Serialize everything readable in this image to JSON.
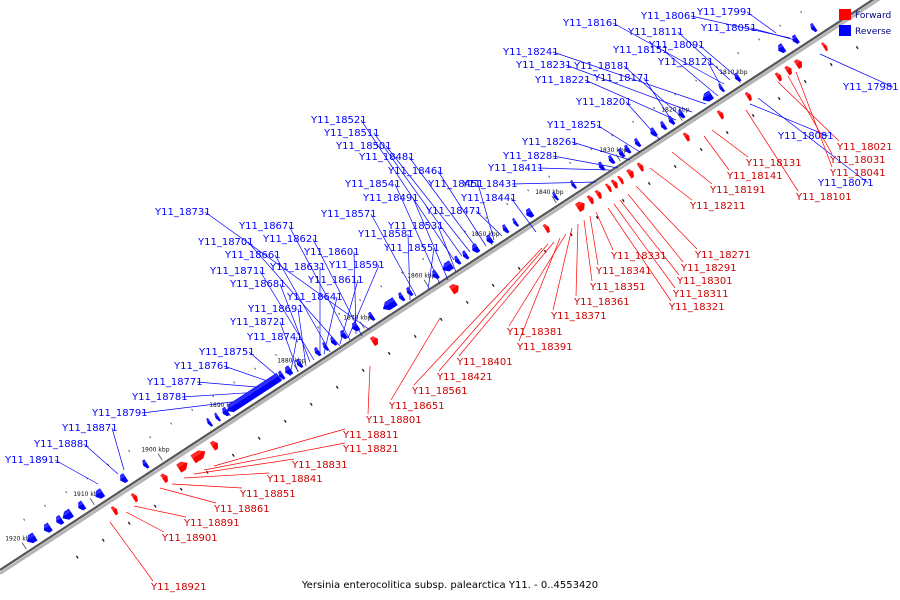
{
  "caption": "Yersinia enterocolitica subsp. palearctica Y11. - 0..4553420",
  "legend": [
    {
      "label": "Forward",
      "color": "#ff0000"
    },
    {
      "label": "Reverse",
      "color": "#0000ff"
    }
  ],
  "colors": {
    "forward": "#ff0000",
    "reverse": "#0000ff",
    "backbone": "#555555",
    "tick": "#000000"
  },
  "ticks": [
    "1810 kbp",
    "1820 kbp",
    "1830 kbp",
    "1840 kbp",
    "1850 kbp",
    "1860 kbp",
    "1870 kbp",
    "1880 kbp",
    "1890 kbp",
    "1900 kbp",
    "1910 kbp",
    "1920 kbp"
  ],
  "reverse_genes": [
    "Y11_17991",
    "Y11_18061",
    "Y11_18051",
    "Y11_18161",
    "Y11_18111",
    "Y11_18091",
    "Y11_18151",
    "Y11_18121",
    "Y11_18241",
    "Y11_18231",
    "Y11_18181",
    "Y11_18221",
    "Y11_18171",
    "Y11_18201",
    "Y11_18251",
    "Y11_18261",
    "Y11_18281",
    "Y11_18411",
    "Y11_18431",
    "Y11_18441",
    "Y11_18521",
    "Y11_18511",
    "Y11_18501",
    "Y11_18481",
    "Y11_18461",
    "Y11_18541",
    "Y11_18451",
    "Y11_18491",
    "Y11_18471",
    "Y11_18571",
    "Y11_18531",
    "Y11_18581",
    "Y11_18551",
    "Y11_18731",
    "Y11_18671",
    "Y11_18701",
    "Y11_18621",
    "Y11_18661",
    "Y11_18601",
    "Y11_18631",
    "Y11_18591",
    "Y11_18711",
    "Y11_18611",
    "Y11_18681",
    "Y11_18641",
    "Y11_18691",
    "Y11_18721",
    "Y11_18741",
    "Y11_18751",
    "Y11_18761",
    "Y11_18771",
    "Y11_18781",
    "Y11_18791",
    "Y11_18871",
    "Y11_18881",
    "Y11_18911",
    "Y11_17981",
    "Y11_18081",
    "Y11_18071"
  ],
  "forward_genes": [
    "Y11_18021",
    "Y11_18031",
    "Y11_18041",
    "Y11_18131",
    "Y11_18141",
    "Y11_18101",
    "Y11_18191",
    "Y11_18211",
    "Y11_18271",
    "Y11_18291",
    "Y11_18301",
    "Y11_18311",
    "Y11_18321",
    "Y11_18331",
    "Y11_18341",
    "Y11_18351",
    "Y11_18361",
    "Y11_18371",
    "Y11_18381",
    "Y11_18391",
    "Y11_18401",
    "Y11_18421",
    "Y11_18561",
    "Y11_18651",
    "Y11_18801",
    "Y11_18811",
    "Y11_18821",
    "Y11_18831",
    "Y11_18841",
    "Y11_18851",
    "Y11_18861",
    "Y11_18891",
    "Y11_18901",
    "Y11_18921"
  ]
}
